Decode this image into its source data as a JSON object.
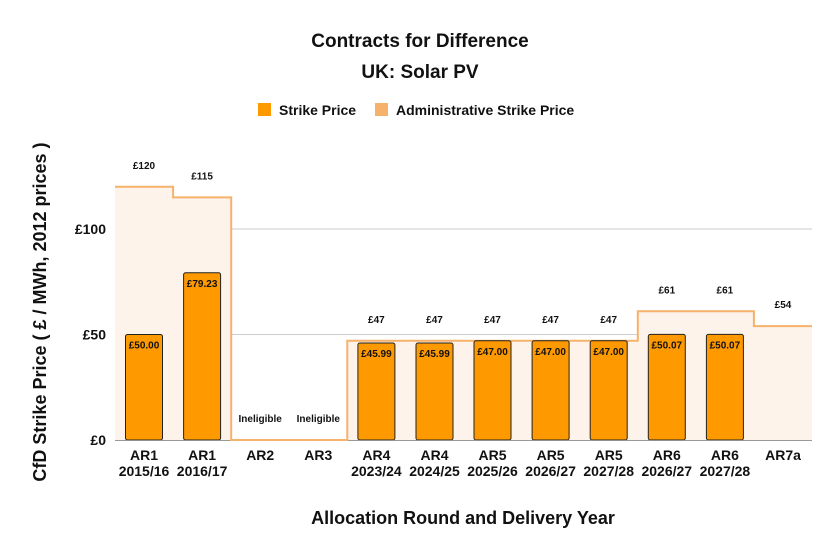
{
  "chart_data": {
    "type": "bar",
    "title": "Contracts for Difference",
    "subtitle": "UK: Solar PV",
    "xlabel": "Allocation Round and Delivery Year",
    "ylabel": "CfD Strike Price ( £ / MWh, 2012 prices )",
    "ylim": [
      0,
      150
    ],
    "yticks": [
      {
        "value": 0,
        "label": "£0"
      },
      {
        "value": 50,
        "label": "£50"
      },
      {
        "value": 100,
        "label": "£100"
      }
    ],
    "grid": true,
    "legend_position": "top-center",
    "categories": [
      [
        "AR1",
        "2015/16"
      ],
      [
        "AR1",
        "2016/17"
      ],
      [
        "AR2"
      ],
      [
        "AR3"
      ],
      [
        "AR4",
        "2023/24"
      ],
      [
        "AR4",
        "2024/25"
      ],
      [
        "AR5",
        "2025/26"
      ],
      [
        "AR5",
        "2026/27"
      ],
      [
        "AR5",
        "2027/28"
      ],
      [
        "AR6",
        "2026/27"
      ],
      [
        "AR6",
        "2027/28"
      ],
      [
        "AR7a"
      ]
    ],
    "series": [
      {
        "name": "Strike Price",
        "type": "bar",
        "color": "#ff9900",
        "values": [
          50.0,
          79.23,
          null,
          null,
          45.99,
          45.99,
          47.0,
          47.0,
          47.0,
          50.07,
          50.07,
          null
        ],
        "labels": [
          "£50.00",
          "£79.23",
          "",
          "",
          "£45.99",
          "£45.99",
          "£47.00",
          "£47.00",
          "£47.00",
          "£50.07",
          "£50.07",
          ""
        ]
      },
      {
        "name": "Administrative Strike Price",
        "type": "area-step",
        "color": "#f6b26b",
        "fill": "#fdf3ea",
        "values": [
          120,
          115,
          0,
          0,
          47,
          47,
          47,
          47,
          47,
          61,
          61,
          54
        ],
        "labels": [
          "£120",
          "£115",
          "",
          "",
          "£47",
          "£47",
          "£47",
          "£47",
          "£47",
          "£61",
          "£61",
          "£54"
        ]
      }
    ],
    "annotations": [
      "",
      "",
      "Ineligible",
      "Ineligible",
      "",
      "",
      "",
      "",
      "",
      "",
      "",
      ""
    ]
  }
}
